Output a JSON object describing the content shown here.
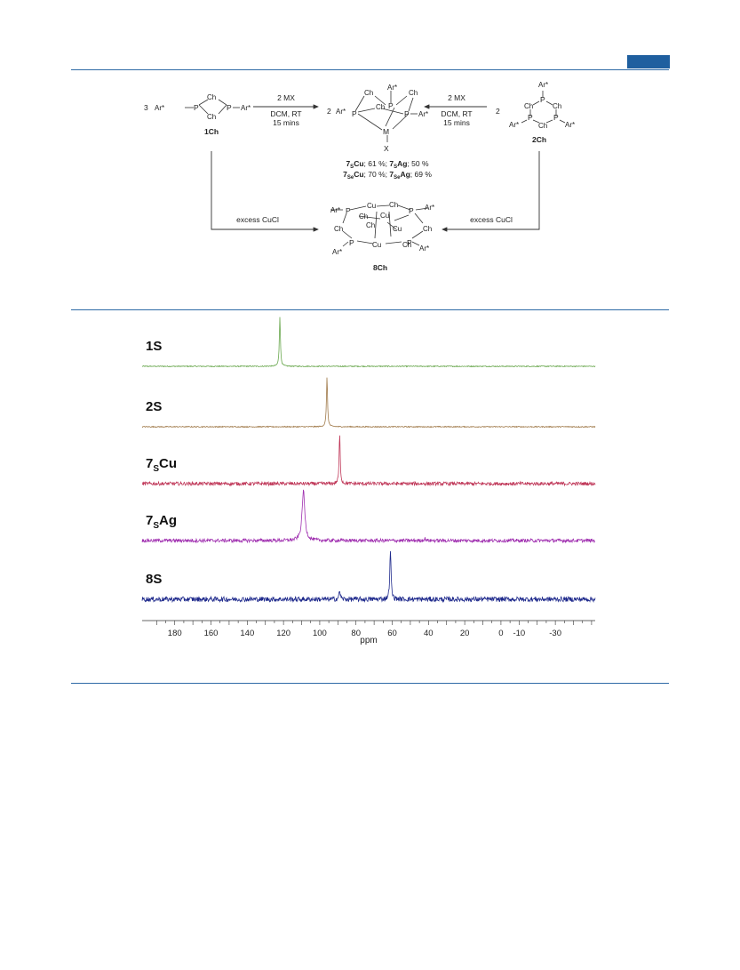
{
  "scheme": {
    "reagent_left": "2 MX",
    "cond_left_1": "DCM, RT",
    "cond_left_2": "15 mins",
    "reagent_right": "2 MX",
    "cond_right_1": "DCM, RT",
    "cond_right_2": "15 mins",
    "coeff_left": "3",
    "coeff_mid": "2",
    "coeff_right": "2",
    "excess_left": "excess CuCl",
    "excess_right": "excess CuCl",
    "compound_1": "1Ch",
    "compound_2": "2Ch",
    "compound_8": "8Ch",
    "atom_ar": "Ar*",
    "atom_p": "P",
    "atom_ch": "Ch",
    "atom_cu": "Cu",
    "atom_m": "M",
    "atom_x": "X",
    "yield_row1": [
      {
        "num": "7",
        "sub": "S",
        "metal": "Cu",
        "rest": "; 61 %; "
      },
      {
        "num": "7",
        "sub": "S",
        "metal": "Ag",
        "rest": "; 50 %"
      }
    ],
    "yield_row2": [
      {
        "num": "7",
        "sub": "Se",
        "metal": "Cu",
        "rest": "; 70 %; "
      },
      {
        "num": "7",
        "sub": "Se",
        "metal": "Ag",
        "rest": "; 69 %"
      }
    ]
  },
  "chart_data": {
    "type": "line",
    "xlabel": "ppm",
    "xlim": [
      198,
      -52
    ],
    "x_ticks": [
      180,
      160,
      140,
      120,
      100,
      80,
      60,
      40,
      20,
      0,
      -10,
      -30
    ],
    "series": [
      {
        "name": "1S",
        "label_main": "1S",
        "label_sub": "",
        "label_tail": "",
        "color": "#6aa84f",
        "peaks": [
          {
            "ppm": 122,
            "height": 1.0,
            "width": 0.35
          }
        ],
        "noise": 0.01
      },
      {
        "name": "2S",
        "label_main": "2S",
        "label_sub": "",
        "label_tail": "",
        "color": "#a07a4a",
        "peaks": [
          {
            "ppm": 96,
            "height": 1.0,
            "width": 0.35
          }
        ],
        "noise": 0.01
      },
      {
        "name": "7SCu",
        "label_main": "7",
        "label_sub": "S",
        "label_tail": "Cu",
        "color": "#c0395a",
        "peaks": [
          {
            "ppm": 89,
            "height": 1.0,
            "width": 0.35
          }
        ],
        "noise": 0.035
      },
      {
        "name": "7SAg",
        "label_main": "7",
        "label_sub": "S",
        "label_tail": "Ag",
        "color": "#a030b0",
        "peaks": [
          {
            "ppm": 109,
            "height": 1.0,
            "width": 0.9
          },
          {
            "ppm": 42,
            "height": 0.04,
            "width": 0.5
          }
        ],
        "noise": 0.035
      },
      {
        "name": "8S",
        "label_main": "8S",
        "label_sub": "",
        "label_tail": "",
        "color": "#1f2a8c",
        "peaks": [
          {
            "ppm": 61,
            "height": 1.0,
            "width": 0.4
          },
          {
            "ppm": 89,
            "height": 0.18,
            "width": 0.4
          }
        ],
        "noise": 0.05
      }
    ]
  }
}
